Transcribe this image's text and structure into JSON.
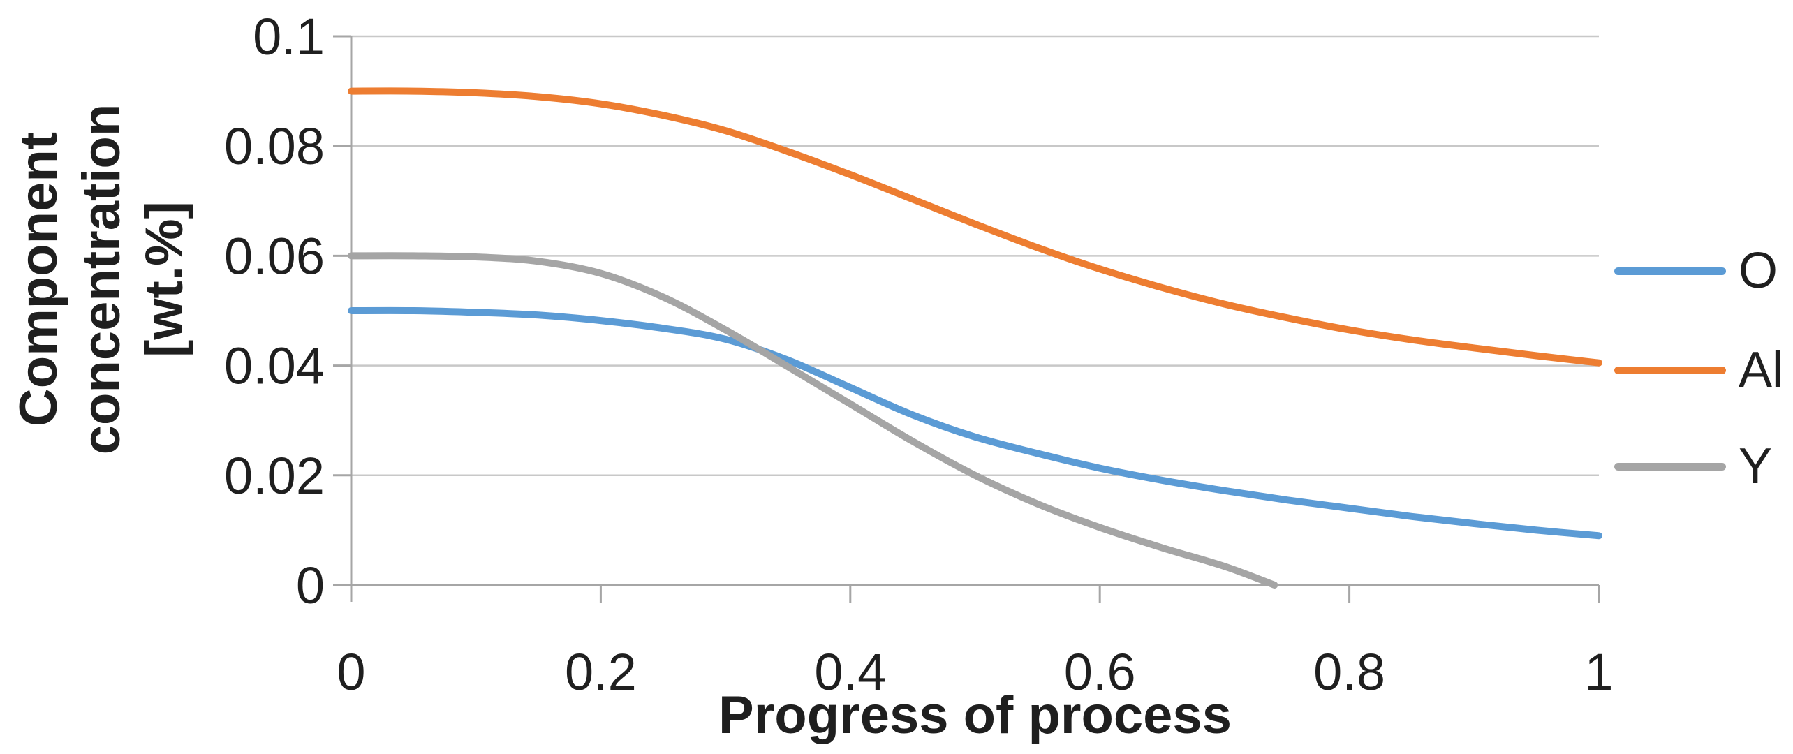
{
  "figure": {
    "background_color": "#ffffff",
    "text_color": "#1f1f1f",
    "gridline_color": "#c8c8c8",
    "axis_color": "#a6a6a6"
  },
  "chart_data": {
    "type": "line",
    "title": "",
    "xlabel": "Progress of process",
    "ylabel": "Component concentration [wt.%]",
    "ylabel_lines": [
      "Component",
      "concentration",
      "[wt.%]"
    ],
    "xlim": [
      0,
      1
    ],
    "ylim": [
      0,
      0.1
    ],
    "x_tick_labels": [
      "0",
      "0.2",
      "0.4",
      "0.6",
      "0.8",
      "1"
    ],
    "x_tick_values": [
      0,
      0.2,
      0.4,
      0.6,
      0.8,
      1
    ],
    "y_tick_labels": [
      "0",
      "0.02",
      "0.04",
      "0.06",
      "0.08",
      "0.1"
    ],
    "y_tick_values": [
      0,
      0.02,
      0.04,
      0.06,
      0.08,
      0.1
    ],
    "grid": "horizontal",
    "legend_position": "right",
    "series": [
      {
        "name": "O",
        "color": "#5B9BD5",
        "x": [
          0,
          0.05,
          0.1,
          0.15,
          0.2,
          0.25,
          0.3,
          0.35,
          0.4,
          0.45,
          0.5,
          0.55,
          0.6,
          0.65,
          0.7,
          0.75,
          0.8,
          0.85,
          0.9,
          0.95,
          1.0
        ],
        "values": [
          0.05,
          0.05,
          0.0497,
          0.0492,
          0.0482,
          0.0468,
          0.0448,
          0.041,
          0.036,
          0.031,
          0.027,
          0.024,
          0.0213,
          0.0191,
          0.0172,
          0.0155,
          0.014,
          0.0125,
          0.0112,
          0.01,
          0.009
        ]
      },
      {
        "name": "Al",
        "color": "#ED7D31",
        "x": [
          0,
          0.05,
          0.1,
          0.15,
          0.2,
          0.25,
          0.3,
          0.35,
          0.4,
          0.45,
          0.5,
          0.55,
          0.6,
          0.65,
          0.7,
          0.75,
          0.8,
          0.85,
          0.9,
          0.95,
          1.0
        ],
        "values": [
          0.09,
          0.09,
          0.0897,
          0.089,
          0.0877,
          0.0856,
          0.0828,
          0.079,
          0.0748,
          0.0703,
          0.0658,
          0.0615,
          0.0576,
          0.0542,
          0.0512,
          0.0487,
          0.0465,
          0.0447,
          0.0432,
          0.0418,
          0.0405
        ]
      },
      {
        "name": "Y",
        "color": "#A5A5A5",
        "x": [
          0,
          0.05,
          0.1,
          0.15,
          0.2,
          0.25,
          0.3,
          0.35,
          0.4,
          0.45,
          0.5,
          0.55,
          0.6,
          0.65,
          0.7,
          0.74
        ],
        "values": [
          0.06,
          0.06,
          0.0598,
          0.059,
          0.0568,
          0.0525,
          0.0465,
          0.0398,
          0.033,
          0.0262,
          0.02,
          0.0148,
          0.0105,
          0.0068,
          0.0034,
          0.0
        ]
      }
    ]
  }
}
